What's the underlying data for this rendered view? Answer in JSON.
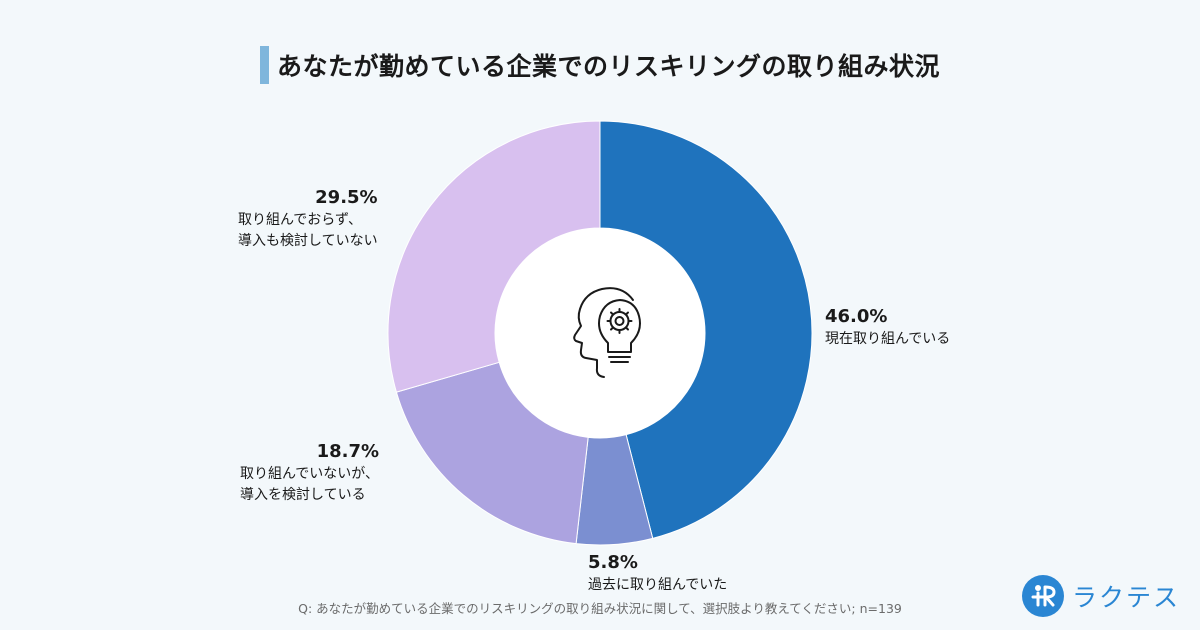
{
  "header": {
    "title": "あなたが勤めている企業でのリスキリングの取り組み状況"
  },
  "footer": {
    "question": "Q: あなたが勤めている企業でのリスキリングの取り組み状況に関して、選択肢より教えてください; n=139",
    "brand_name": "ラクテス"
  },
  "colors": {
    "slice_1": "#1f73bd",
    "slice_2": "#7b8fd1",
    "slice_3": "#aca3e0",
    "slice_4": "#d8c0ef",
    "title_accent": "#7fb6dc",
    "brand": "#2a86d3"
  },
  "icons": {
    "center": "head-gear-lightbulb-icon",
    "brand": "raktes-logo-icon"
  },
  "chart_data": {
    "type": "pie",
    "variant": "donut",
    "title": "あなたが勤めている企業でのリスキリングの取り組み状況",
    "unit": "%",
    "slices": [
      {
        "label_pct": "46.0%",
        "label_lines": [
          "現在取り組んでいる"
        ],
        "value": 46.0
      },
      {
        "label_pct": "5.8%",
        "label_lines": [
          "過去に取り組んでいた"
        ],
        "value": 5.8
      },
      {
        "label_pct": "18.7%",
        "label_lines": [
          "取り組んでいないが、",
          "導入を検討している"
        ],
        "value": 18.7
      },
      {
        "label_pct": "29.5%",
        "label_lines": [
          "取り組んでおらず、",
          "導入も検討していない"
        ],
        "value": 29.5
      }
    ]
  }
}
